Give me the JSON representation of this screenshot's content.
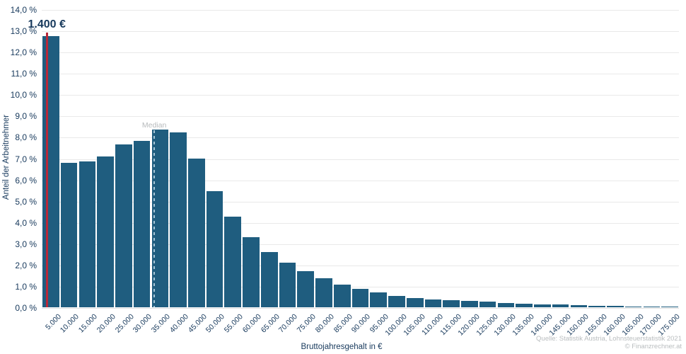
{
  "chart_data": {
    "type": "bar",
    "title": "",
    "xlabel": "Bruttojahresgehalt in €",
    "ylabel": "Anteil der Arbeitnehmer",
    "ylim": [
      0,
      14
    ],
    "grid": true,
    "legend": "none",
    "bin_size_eur": 5000,
    "bar_color": "#1f5d7f",
    "ytick_labels": [
      "0,0 %",
      "1,0 %",
      "2,0 %",
      "3,0 %",
      "4,0 %",
      "5,0 %",
      "6,0 %",
      "7,0 %",
      "8,0 %",
      "9,0 %",
      "10,0 %",
      "11,0 %",
      "12,0 %",
      "13,0 %",
      "14,0 %"
    ],
    "categories": [
      "5.000",
      "10.000",
      "15.000",
      "20.000",
      "25.000",
      "30.000",
      "35.000",
      "40.000",
      "45.000",
      "50.000",
      "55.000",
      "60.000",
      "65.000",
      "70.000",
      "75.000",
      "80.000",
      "85.000",
      "90.000",
      "95.000",
      "100.000",
      "105.000",
      "110.000",
      "115.000",
      "120.000",
      "125.000",
      "130.000",
      "135.000",
      "140.000",
      "145.000",
      "150.000",
      "155.000",
      "160.000",
      "165.000",
      "170.000",
      "175.000"
    ],
    "values": [
      12.75,
      6.8,
      6.85,
      7.1,
      7.65,
      7.8,
      8.35,
      8.2,
      7.0,
      5.45,
      4.25,
      3.3,
      2.6,
      2.1,
      1.7,
      1.35,
      1.05,
      0.85,
      0.7,
      0.55,
      0.45,
      0.38,
      0.33,
      0.29,
      0.26,
      0.21,
      0.18,
      0.15,
      0.12,
      0.1,
      0.08,
      0.07,
      0.05,
      0.04,
      0.03
    ],
    "annotations": {
      "threshold_line": {
        "label": "1.400 €",
        "x_value": 1400,
        "color": "#b8293a"
      },
      "median_line": {
        "label": "Median",
        "x_value": 30900,
        "at_bar_value": 8.35,
        "color": "#a6c6d7"
      }
    }
  },
  "footer": {
    "source_line1": "Quelle: Statistik Austria, Lohnsteuerstatistik 2021",
    "source_line2": "© Finanzrechner.at"
  },
  "colors": {
    "bar": "#1f5d7f",
    "axis_text": "#17395c",
    "gridline": "#e9e9e9",
    "threshold_red": "#b8293a",
    "median_dash": "#a6c6d7",
    "muted_gray": "#b9bdbf",
    "background": "#ffffff"
  }
}
